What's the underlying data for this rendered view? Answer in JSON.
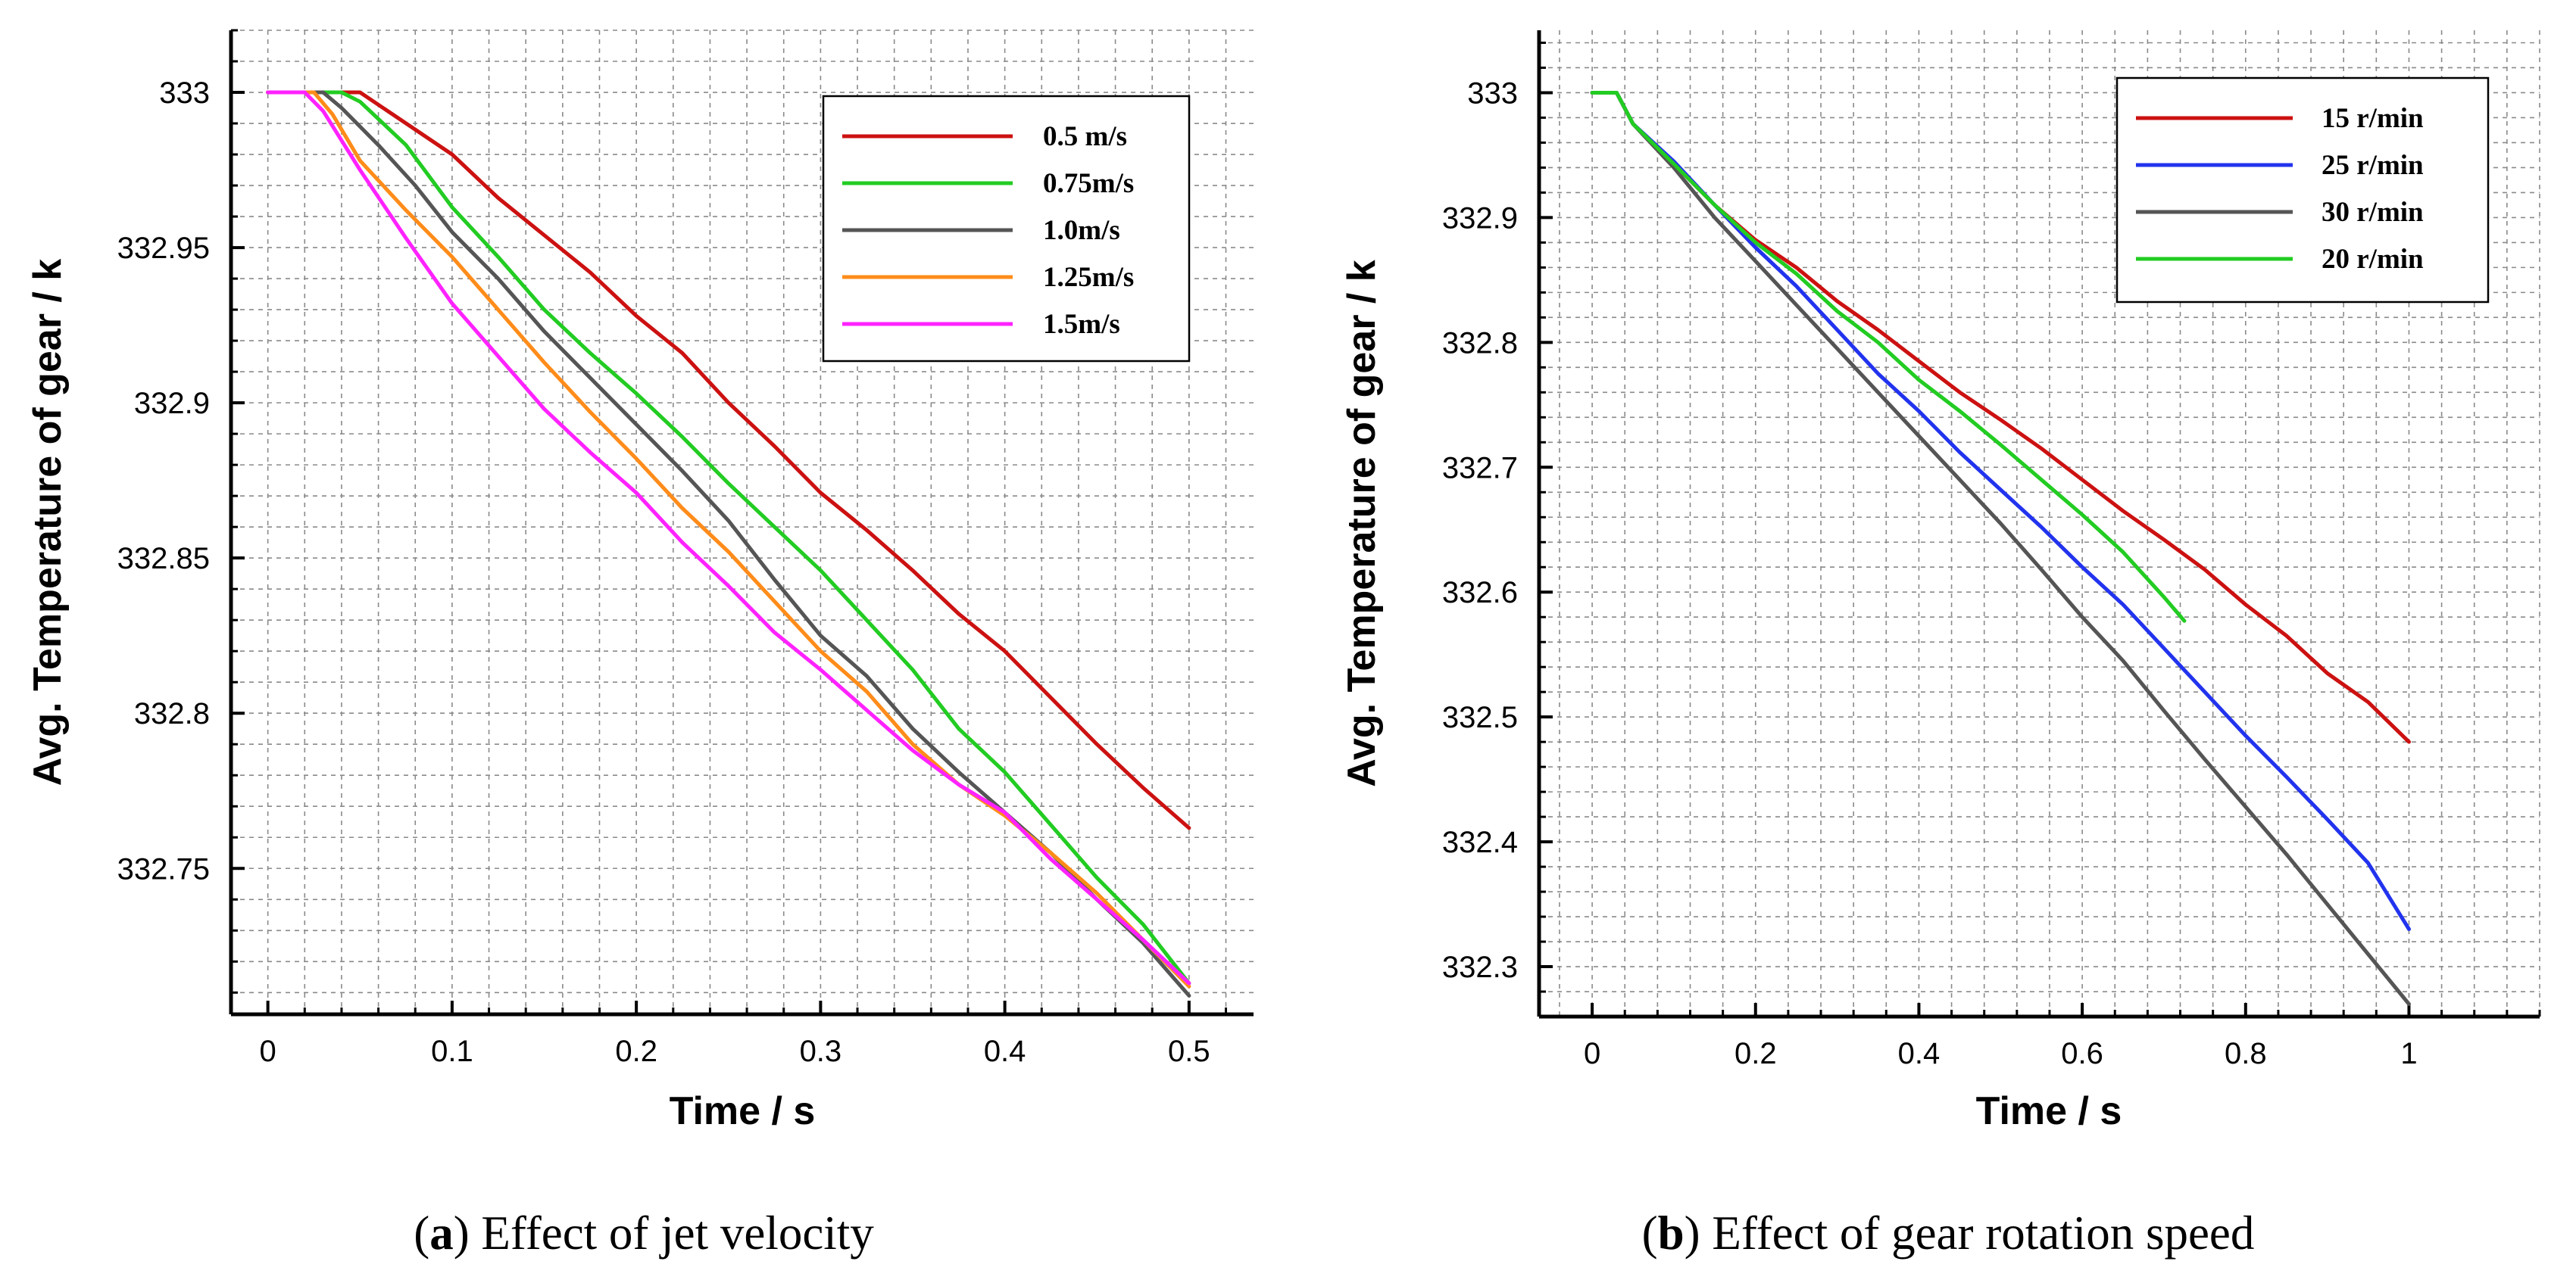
{
  "chart_data": [
    {
      "type": "line",
      "caption_letter": "a",
      "caption_text": "Effect of jet velocity",
      "xlabel": "Time / s",
      "ylabel": "Avg. Temperature of gear / k",
      "xlim": [
        -0.02,
        0.535
      ],
      "ylim": [
        332.703,
        333.02
      ],
      "xticks": [
        0,
        0.1,
        0.2,
        0.3,
        0.4,
        0.5
      ],
      "xtick_labels": [
        "0",
        "0.1",
        "0.2",
        "0.3",
        "0.4",
        "0.5"
      ],
      "yticks": [
        332.75,
        332.8,
        332.85,
        332.9,
        332.95,
        333
      ],
      "ytick_labels": [
        "332.75",
        "332.8",
        "332.85",
        "332.9",
        "332.95",
        "333"
      ],
      "grid": true,
      "legend_position": "top-right",
      "series": [
        {
          "name": "0.5 m/s",
          "color": "#cc1111",
          "x": [
            0,
            0.05,
            0.075,
            0.1,
            0.125,
            0.15,
            0.175,
            0.2,
            0.225,
            0.25,
            0.275,
            0.3,
            0.325,
            0.35,
            0.375,
            0.4,
            0.425,
            0.45,
            0.475,
            0.5
          ],
          "y": [
            333.0,
            333.0,
            332.99,
            332.98,
            332.966,
            332.954,
            332.942,
            332.928,
            332.916,
            332.9,
            332.886,
            332.871,
            332.859,
            332.846,
            332.832,
            332.82,
            332.805,
            332.79,
            332.776,
            332.763
          ]
        },
        {
          "name": "0.75m/s",
          "color": "#22cc22",
          "x": [
            0,
            0.04,
            0.05,
            0.075,
            0.1,
            0.125,
            0.15,
            0.175,
            0.2,
            0.225,
            0.25,
            0.275,
            0.3,
            0.325,
            0.35,
            0.375,
            0.4,
            0.425,
            0.45,
            0.475,
            0.5
          ],
          "y": [
            333.0,
            333.0,
            332.997,
            332.983,
            332.963,
            332.947,
            332.93,
            332.916,
            332.903,
            332.889,
            332.874,
            332.86,
            332.846,
            332.83,
            332.814,
            332.795,
            332.781,
            332.764,
            332.747,
            332.732,
            332.713
          ]
        },
        {
          "name": "1.0m/s",
          "color": "#555555",
          "x": [
            0,
            0.03,
            0.04,
            0.06,
            0.08,
            0.1,
            0.125,
            0.15,
            0.175,
            0.2,
            0.225,
            0.25,
            0.275,
            0.3,
            0.325,
            0.35,
            0.375,
            0.4,
            0.425,
            0.45,
            0.475,
            0.5
          ],
          "y": [
            333.0,
            333.0,
            332.995,
            332.983,
            332.97,
            332.955,
            332.94,
            332.923,
            332.908,
            332.893,
            332.878,
            332.862,
            332.843,
            332.825,
            332.812,
            332.795,
            332.781,
            332.768,
            332.755,
            332.74,
            332.726,
            332.709
          ]
        },
        {
          "name": "1.25m/s",
          "color": "#ff8c1a",
          "x": [
            0,
            0.025,
            0.035,
            0.05,
            0.075,
            0.1,
            0.125,
            0.15,
            0.175,
            0.2,
            0.225,
            0.25,
            0.275,
            0.3,
            0.325,
            0.35,
            0.375,
            0.4,
            0.425,
            0.45,
            0.475,
            0.5
          ],
          "y": [
            333.0,
            333.0,
            332.993,
            332.978,
            332.962,
            332.947,
            332.93,
            332.913,
            332.897,
            332.882,
            332.866,
            332.852,
            332.836,
            332.82,
            332.807,
            332.79,
            332.777,
            332.767,
            332.755,
            332.742,
            332.727,
            332.712
          ]
        },
        {
          "name": "1.5m/s",
          "color": "#ff22ff",
          "x": [
            0,
            0.02,
            0.03,
            0.05,
            0.075,
            0.1,
            0.125,
            0.15,
            0.175,
            0.2,
            0.225,
            0.25,
            0.275,
            0.3,
            0.325,
            0.35,
            0.375,
            0.4,
            0.425,
            0.45,
            0.475,
            0.5
          ],
          "y": [
            333.0,
            333.0,
            332.994,
            332.975,
            332.953,
            332.932,
            332.915,
            332.898,
            332.884,
            332.871,
            332.855,
            332.841,
            332.826,
            332.814,
            332.801,
            332.788,
            332.777,
            332.768,
            332.753,
            332.74,
            332.727,
            332.713
          ]
        }
      ]
    },
    {
      "type": "line",
      "caption_letter": "b",
      "caption_text": "Effect of gear rotation speed",
      "xlabel": "Time / s",
      "ylabel": "Avg. Temperature of gear / k",
      "xlim": [
        -0.065,
        1.16
      ],
      "ylim": [
        332.26,
        333.05
      ],
      "xticks": [
        0,
        0.2,
        0.4,
        0.6,
        0.8,
        1
      ],
      "xtick_labels": [
        "0",
        "0.2",
        "0.4",
        "0.6",
        "0.8",
        "1"
      ],
      "yticks": [
        332.3,
        332.4,
        332.5,
        332.6,
        332.7,
        332.8,
        332.9,
        333
      ],
      "ytick_labels": [
        "332.3",
        "332.4",
        "332.5",
        "332.6",
        "332.7",
        "332.8",
        "332.9",
        "333"
      ],
      "grid": true,
      "legend_position": "top-right",
      "series": [
        {
          "name": "15 r/min",
          "color": "#cc1111",
          "x": [
            0,
            0.03,
            0.05,
            0.1,
            0.15,
            0.2,
            0.25,
            0.3,
            0.35,
            0.4,
            0.45,
            0.5,
            0.55,
            0.6,
            0.65,
            0.7,
            0.75,
            0.8,
            0.85,
            0.9,
            0.95,
            1.0
          ],
          "y": [
            333.0,
            333.0,
            332.975,
            332.943,
            332.91,
            332.882,
            332.86,
            332.833,
            332.81,
            332.785,
            332.76,
            332.738,
            332.715,
            332.69,
            332.665,
            332.642,
            332.618,
            332.59,
            332.565,
            332.535,
            332.512,
            332.48
          ]
        },
        {
          "name": "25 r/min",
          "color": "#2233ee",
          "x": [
            0,
            0.03,
            0.05,
            0.1,
            0.15,
            0.2,
            0.25,
            0.3,
            0.35,
            0.4,
            0.45,
            0.5,
            0.55,
            0.6,
            0.65,
            0.7,
            0.75,
            0.8,
            0.85,
            0.9,
            0.95,
            1.0
          ],
          "y": [
            333.0,
            333.0,
            332.975,
            332.945,
            332.91,
            332.876,
            332.845,
            332.81,
            332.775,
            332.745,
            332.712,
            332.682,
            332.652,
            332.62,
            332.59,
            332.555,
            332.52,
            332.485,
            332.452,
            332.418,
            332.383,
            332.33
          ]
        },
        {
          "name": "30 r/min",
          "color": "#555555",
          "x": [
            0,
            0.03,
            0.05,
            0.1,
            0.15,
            0.2,
            0.25,
            0.3,
            0.35,
            0.4,
            0.45,
            0.5,
            0.55,
            0.6,
            0.65,
            0.7,
            0.75,
            0.8,
            0.85,
            0.9,
            0.95,
            1.0
          ],
          "y": [
            333.0,
            333.0,
            332.975,
            332.94,
            332.9,
            332.865,
            332.83,
            332.795,
            332.76,
            332.725,
            332.69,
            332.655,
            332.618,
            332.58,
            332.545,
            332.505,
            332.466,
            332.428,
            332.39,
            332.35,
            332.31,
            332.27
          ]
        },
        {
          "name": "20 r/min",
          "color": "#22cc22",
          "x": [
            0,
            0.03,
            0.05,
            0.1,
            0.15,
            0.2,
            0.25,
            0.3,
            0.35,
            0.4,
            0.45,
            0.5,
            0.55,
            0.6,
            0.65,
            0.7,
            0.725
          ],
          "y": [
            333.0,
            333.0,
            332.975,
            332.943,
            332.91,
            332.88,
            332.855,
            332.825,
            332.8,
            332.77,
            332.745,
            332.718,
            332.69,
            332.662,
            332.632,
            332.596,
            332.577
          ]
        }
      ]
    }
  ]
}
